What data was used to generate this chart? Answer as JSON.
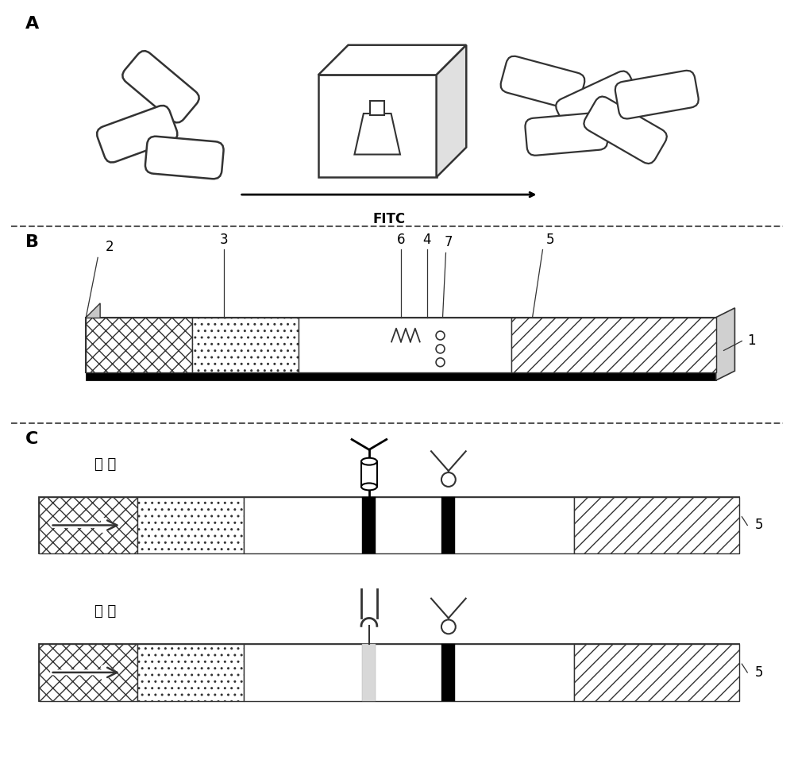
{
  "fig_width": 10.0,
  "fig_height": 9.71,
  "bg_color": "#ffffff",
  "label_A": "A",
  "label_B": "B",
  "label_C": "C",
  "fitc_label": "FITC",
  "positive_label": "阳 性",
  "negative_label": "阴 性",
  "black": "#000000",
  "dark_gray": "#333333",
  "mid_gray": "#777777",
  "light_gray": "#cccccc",
  "dashed_color": "#555555",
  "pill_left": [
    [
      2.0,
      8.65,
      -40,
      0.75,
      0.25
    ],
    [
      1.7,
      8.05,
      20,
      0.75,
      0.25
    ],
    [
      2.3,
      7.75,
      -5,
      0.75,
      0.25
    ]
  ],
  "pill_right": [
    [
      6.85,
      8.7,
      -15,
      0.8,
      0.25
    ],
    [
      7.55,
      8.45,
      25,
      0.8,
      0.25
    ],
    [
      7.15,
      8.05,
      5,
      0.8,
      0.25
    ],
    [
      7.9,
      8.1,
      -30,
      0.8,
      0.25
    ],
    [
      8.3,
      8.55,
      10,
      0.8,
      0.25
    ]
  ]
}
